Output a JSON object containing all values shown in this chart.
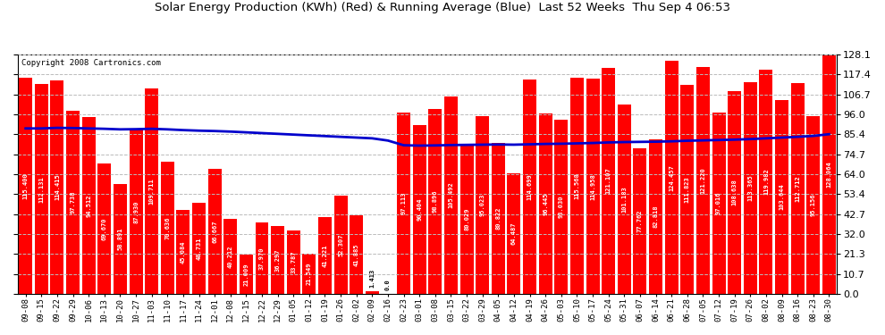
{
  "title": "Solar Energy Production (KWh) (Red) & Running Average (Blue)  Last 52 Weeks  Thu Sep 4 06:53",
  "copyright": "Copyright 2008 Cartronics.com",
  "bar_color": "#ff0000",
  "avg_line_color": "#0000cc",
  "background_color": "#ffffff",
  "plot_bg_color": "#ffffff",
  "grid_color": "#bbbbbb",
  "yticks": [
    0.0,
    10.7,
    21.3,
    32.0,
    42.7,
    53.4,
    64.0,
    74.7,
    85.4,
    96.0,
    106.7,
    117.4,
    128.1
  ],
  "categories": [
    "09-08",
    "09-15",
    "09-22",
    "09-29",
    "10-06",
    "10-13",
    "10-20",
    "10-27",
    "11-03",
    "11-10",
    "11-17",
    "11-24",
    "12-01",
    "12-08",
    "12-15",
    "12-22",
    "12-29",
    "01-05",
    "01-12",
    "01-19",
    "01-26",
    "02-02",
    "02-09",
    "02-16",
    "02-23",
    "03-01",
    "03-08",
    "03-15",
    "03-22",
    "03-29",
    "04-05",
    "04-12",
    "04-19",
    "04-26",
    "05-03",
    "05-10",
    "05-17",
    "05-24",
    "05-31",
    "06-07",
    "06-14",
    "06-21",
    "06-28",
    "07-05",
    "07-12",
    "07-19",
    "07-26",
    "08-02",
    "08-09",
    "08-16",
    "08-23",
    "08-30"
  ],
  "values": [
    115.4,
    112.131,
    114.415,
    97.738,
    94.512,
    69.67,
    58.891,
    87.93,
    109.711,
    70.636,
    45.084,
    48.731,
    66.667,
    40.212,
    21.009,
    37.97,
    36.297,
    33.787,
    21.549,
    41.221,
    52.307,
    41.885,
    1.413,
    0.0,
    97.113,
    90.404,
    98.896,
    105.492,
    80.029,
    95.023,
    80.822,
    64.487,
    114.699,
    96.445,
    93.03,
    115.568,
    114.958,
    121.107,
    101.183,
    77.762,
    82.818,
    124.457,
    111.823,
    121.22,
    97.016,
    108.638,
    113.365,
    119.982,
    103.644,
    112.712,
    95.156,
    128.064
  ],
  "running_avg": [
    88.5,
    88.5,
    88.8,
    88.7,
    88.5,
    88.3,
    88.0,
    88.1,
    88.3,
    88.0,
    87.6,
    87.3,
    87.1,
    86.8,
    86.4,
    86.0,
    85.6,
    85.2,
    84.8,
    84.4,
    84.0,
    83.6,
    83.2,
    82.0,
    79.5,
    79.3,
    79.4,
    79.6,
    79.7,
    79.8,
    79.9,
    79.8,
    80.0,
    80.2,
    80.3,
    80.5,
    80.7,
    81.0,
    81.2,
    81.3,
    81.4,
    81.6,
    81.9,
    82.1,
    82.3,
    82.5,
    82.8,
    83.2,
    83.6,
    84.0,
    84.5,
    85.4
  ],
  "figwidth": 9.9,
  "figheight": 3.75,
  "dpi": 100
}
